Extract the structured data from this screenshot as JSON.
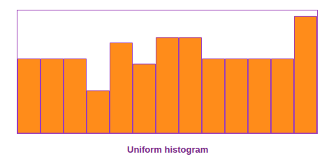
{
  "chart_data": {
    "type": "bar",
    "title": "Uniform histogram",
    "categories": [
      null,
      null,
      null,
      null,
      null,
      null,
      null,
      null,
      null,
      null,
      null,
      null,
      null
    ],
    "values": [
      7,
      7,
      7,
      4,
      8.5,
      6.5,
      9,
      9,
      7,
      7,
      7,
      7,
      11
    ],
    "color": "#FF8C1A",
    "ylim": [
      0,
      11.55
    ],
    "grid": false,
    "tick_labels": false
  }
}
